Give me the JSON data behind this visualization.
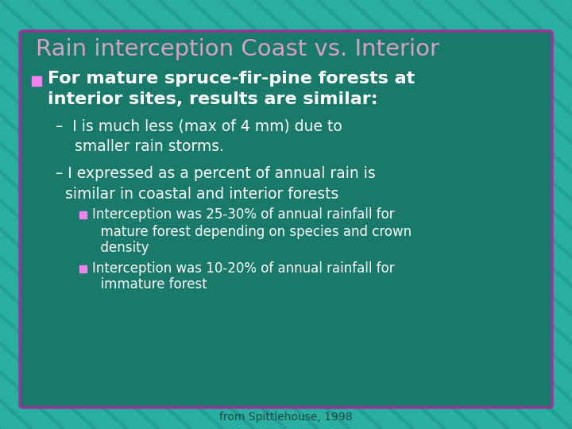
{
  "title": "Rain interception Coast vs. Interior",
  "title_color": "#d8a0c8",
  "background_color": "#29b0a0",
  "stripe_color": "#239890",
  "box_bg_color": "#1a7a6a",
  "box_border_color": "#993399",
  "bullet1_line1": "For mature spruce-fir-pine forests at",
  "bullet1_line2": "interior sites, results are similar:",
  "sub1_line1": "–  I is much less (max of 4 mm) due to",
  "sub1_line2": "    smaller rain storms.",
  "sub2_line1": "– I expressed as a percent of annual rain is",
  "sub2_line2": "  similar in coastal and interior forests",
  "sb1_line1": "Interception was 25-30% of annual rainfall for",
  "sb1_line2": "  mature forest depending on species and crown",
  "sb1_line3": "  density",
  "sb2_line1": "Interception was 10-20% of annual rainfall for",
  "sb2_line2": "  immature forest",
  "footer": "from Spittlehouse, 1998",
  "bullet_color": "#ee82ee",
  "text_color": "#ffffff",
  "footer_color": "#224444",
  "figwidth": 7.2,
  "figheight": 5.4,
  "dpi": 100
}
